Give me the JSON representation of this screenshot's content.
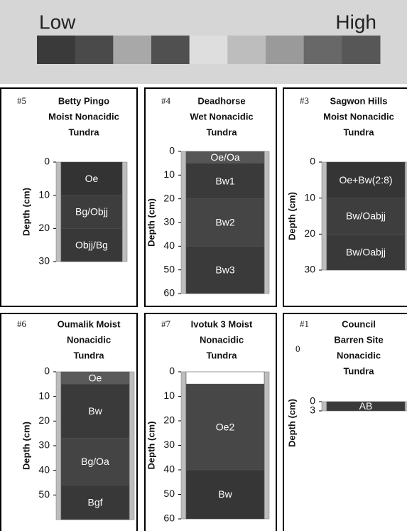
{
  "legend": {
    "low": "Low",
    "high": "High",
    "colors": [
      "#3a3a3a",
      "#4a4a4a",
      "#a8a8a8",
      "#505050",
      "#dedede",
      "#bdbdbd",
      "#9a9a9a",
      "#686868",
      "#575757"
    ]
  },
  "panels": [
    {
      "number": "#5",
      "title": [
        "Betty Pingo",
        "Moist Nonacidic",
        "Tundra"
      ],
      "axis_label": "Depth (cm)",
      "ylim": [
        0,
        30
      ],
      "yticks": [
        0,
        10,
        20,
        30
      ],
      "horizons": [
        {
          "label": "Oe",
          "top": 0,
          "bottom": 10,
          "color": "#333333"
        },
        {
          "label": "Bg/Objj",
          "top": 10,
          "bottom": 20,
          "color": "#3d3d3d"
        },
        {
          "label": "Objj/Bg",
          "top": 20,
          "bottom": 30,
          "color": "#383838"
        }
      ]
    },
    {
      "number": "#4",
      "title": [
        "Deadhorse",
        "Wet Nonacidic",
        "Tundra"
      ],
      "axis_label": "Depth (cm)",
      "ylim": [
        0,
        60
      ],
      "yticks": [
        0,
        10,
        20,
        30,
        40,
        50,
        60
      ],
      "horizons": [
        {
          "label": "Oe/Oa",
          "top": 0,
          "bottom": 5,
          "color": "#565656"
        },
        {
          "label": "Bw1",
          "top": 5,
          "bottom": 20,
          "color": "#3a3a3a"
        },
        {
          "label": "Bw2",
          "top": 20,
          "bottom": 40,
          "color": "#454545"
        },
        {
          "label": "Bw3",
          "top": 40,
          "bottom": 60,
          "color": "#3a3a3a"
        }
      ]
    },
    {
      "number": "#3",
      "title": [
        "Sagwon Hills",
        "Moist Nonacidic",
        "Tundra"
      ],
      "axis_label": "Depth (cm)",
      "ylim": [
        0,
        30
      ],
      "yticks": [
        0,
        10,
        20,
        30
      ],
      "horizons": [
        {
          "label": "Oe+Bw(2:8)",
          "top": 0,
          "bottom": 10,
          "color": "#353535"
        },
        {
          "label": "Bw/Oabjj",
          "top": 10,
          "bottom": 20,
          "color": "#3e3e3e"
        },
        {
          "label": "Bw/Oabjj",
          "top": 20,
          "bottom": 30,
          "color": "#393939"
        }
      ]
    },
    {
      "number": "#6",
      "title": [
        "Oumalik Moist",
        "Nonacidic",
        "Tundra"
      ],
      "axis_label": "Depth (cm)",
      "ylim": [
        0,
        60
      ],
      "yticks": [
        0,
        10,
        20,
        30,
        40,
        50
      ],
      "horizons": [
        {
          "label": "Oe",
          "top": 0,
          "bottom": 5,
          "color": "#5a5a5a"
        },
        {
          "label": "Bw",
          "top": 5,
          "bottom": 27,
          "color": "#3a3a3a"
        },
        {
          "label": "Bg/Oa",
          "top": 27,
          "bottom": 46,
          "color": "#444444"
        },
        {
          "label": "Bgf",
          "top": 46,
          "bottom": 60,
          "color": "#383838"
        }
      ]
    },
    {
      "number": "#7",
      "title": [
        "Ivotuk 3 Moist",
        "Nonacidic",
        "Tundra"
      ],
      "axis_label": "Depth (cm)",
      "ylim": [
        0,
        60
      ],
      "yticks": [
        0,
        10,
        20,
        30,
        40,
        50,
        60
      ],
      "horizons": [
        {
          "top": 0,
          "bottom": 5,
          "color": "#ffffff"
        },
        {
          "label": "Oe2",
          "top": 5,
          "bottom": 40,
          "color": "#474747"
        },
        {
          "label": "Bw",
          "top": 40,
          "bottom": 60,
          "color": "#363636"
        }
      ]
    },
    {
      "number": "#1",
      "note": "0",
      "title": [
        "Council",
        "Barren Site",
        "Nonacidic",
        "Tundra"
      ],
      "axis_label": "Depth (cm)",
      "ylim": [
        0,
        3
      ],
      "yticks": [
        0,
        3
      ],
      "horizons": [
        {
          "label": "AB",
          "top": 0,
          "bottom": 3,
          "color": "#3a3a3a"
        }
      ]
    }
  ]
}
